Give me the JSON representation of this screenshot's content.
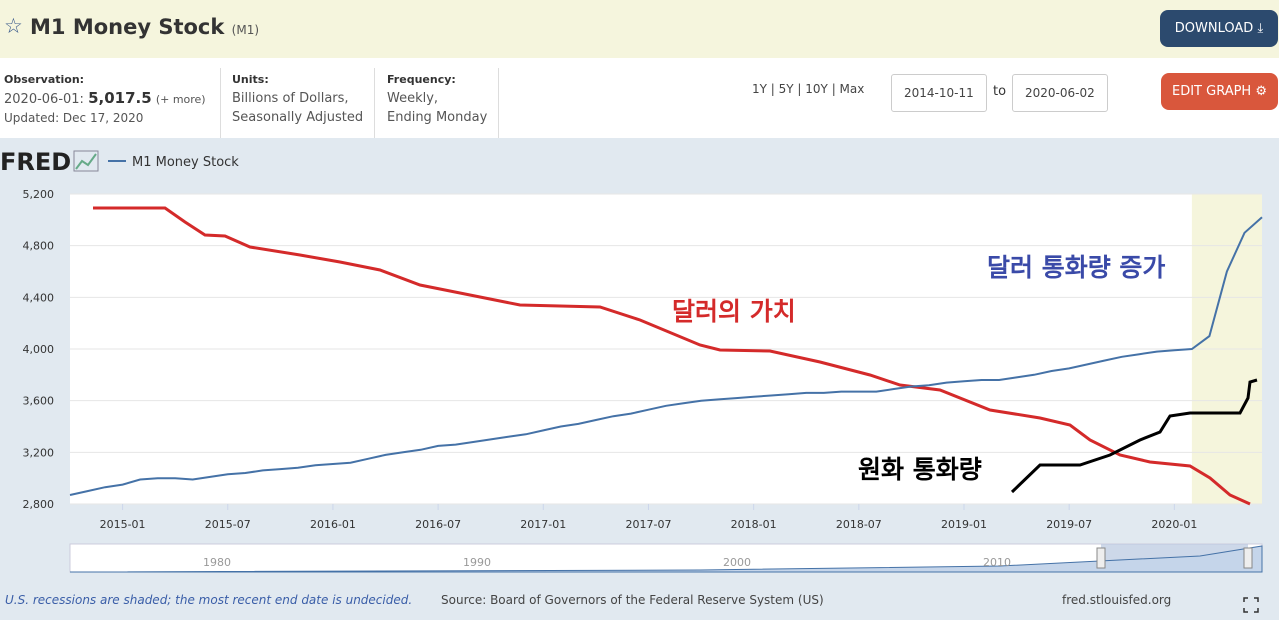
{
  "header": {
    "title": "M1 Money Stock",
    "code": "(M1)",
    "download": "DOWNLOAD"
  },
  "info": {
    "observation_label": "Observation:",
    "observation_date": "2020-06-01:",
    "observation_value": "5,017.5",
    "more": "(+ more)",
    "updated": "Updated: Dec 17, 2020",
    "units_label": "Units:",
    "units": [
      "Billions of Dollars,",
      "Seasonally Adjusted"
    ],
    "frequency_label": "Frequency:",
    "frequency": [
      "Weekly,",
      "Ending Monday"
    ]
  },
  "controls": {
    "ranges": "1Y | 5Y | 10Y | Max",
    "start": "2014-10-11",
    "to": "to",
    "end": "2020-06-02",
    "edit": "EDIT GRAPH"
  },
  "chart_data": {
    "type": "line",
    "logo": "FRED",
    "x": [
      "2014-10",
      "2014-11",
      "2014-12",
      "2015-01",
      "2015-02",
      "2015-03",
      "2015-04",
      "2015-05",
      "2015-06",
      "2015-07",
      "2015-08",
      "2015-09",
      "2015-10",
      "2015-11",
      "2015-12",
      "2016-01",
      "2016-02",
      "2016-03",
      "2016-04",
      "2016-05",
      "2016-06",
      "2016-07",
      "2016-08",
      "2016-09",
      "2016-10",
      "2016-11",
      "2016-12",
      "2017-01",
      "2017-02",
      "2017-03",
      "2017-04",
      "2017-05",
      "2017-06",
      "2017-07",
      "2017-08",
      "2017-09",
      "2017-10",
      "2017-11",
      "2017-12",
      "2018-01",
      "2018-02",
      "2018-03",
      "2018-04",
      "2018-05",
      "2018-06",
      "2018-07",
      "2018-08",
      "2018-09",
      "2018-10",
      "2018-11",
      "2018-12",
      "2019-01",
      "2019-02",
      "2019-03",
      "2019-04",
      "2019-05",
      "2019-06",
      "2019-07",
      "2019-08",
      "2019-09",
      "2019-10",
      "2019-11",
      "2019-12",
      "2020-01",
      "2020-02",
      "2020-03",
      "2020-04",
      "2020-05",
      "2020-06"
    ],
    "series": [
      {
        "name": "M1 Money Stock",
        "color": "#4572a7",
        "values": [
          2870,
          2900,
          2930,
          2950,
          2990,
          3000,
          3000,
          2990,
          3010,
          3030,
          3040,
          3060,
          3070,
          3080,
          3100,
          3110,
          3120,
          3150,
          3180,
          3200,
          3220,
          3250,
          3260,
          3280,
          3300,
          3320,
          3340,
          3370,
          3400,
          3420,
          3450,
          3480,
          3500,
          3530,
          3560,
          3580,
          3600,
          3610,
          3620,
          3630,
          3640,
          3650,
          3660,
          3660,
          3670,
          3670,
          3670,
          3690,
          3710,
          3720,
          3740,
          3750,
          3760,
          3760,
          3780,
          3800,
          3830,
          3850,
          3880,
          3910,
          3940,
          3960,
          3980,
          3990,
          4000,
          4100,
          4600,
          4900,
          5020
        ]
      }
    ],
    "xlim": [
      "2014-10",
      "2020-06"
    ],
    "xticks": [
      "2015-01",
      "2015-07",
      "2016-01",
      "2016-07",
      "2017-01",
      "2017-07",
      "2018-01",
      "2018-07",
      "2019-01",
      "2019-07",
      "2020-01"
    ],
    "ylim": [
      2800,
      5200
    ],
    "yticks": [
      {
        "value": 2800,
        "label": "2,800"
      },
      {
        "value": 3200,
        "label": "3,200"
      },
      {
        "value": 3600,
        "label": "3,600"
      },
      {
        "value": 4000,
        "label": "4,000"
      },
      {
        "value": 4400,
        "label": "4,400"
      },
      {
        "value": 4800,
        "label": "4,800"
      },
      {
        "value": 5200,
        "label": "5,200"
      }
    ],
    "grid": true,
    "recession": {
      "start": "2020-02",
      "end": "2020-06",
      "color": "#f5f5dc"
    },
    "annotations": [
      "달러 통화량 증가",
      "달러의 가치",
      "원화 통화량"
    ],
    "navigator_labels": [
      "1980",
      "1990",
      "2000",
      "2010"
    ]
  },
  "footer": {
    "note": "U.S. recessions are shaded; the most recent end date is undecided.",
    "source": "Source: Board of Governors of the Federal Reserve System (US)",
    "url": "fred.stlouisfed.org"
  }
}
